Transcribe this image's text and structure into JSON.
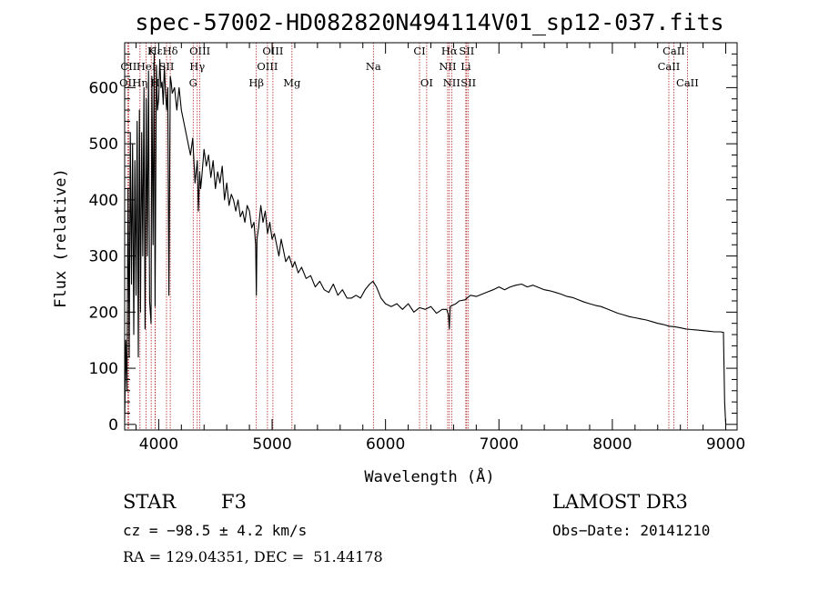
{
  "chart_data": {
    "type": "line",
    "title": "spec-57002-HD082820N494114V01_sp12-037.fits",
    "xlabel": "Wavelength (Å)",
    "ylabel": "Flux (relative)",
    "xlim": [
      3700,
      9100
    ],
    "ylim": [
      -10,
      680
    ],
    "x_ticks": [
      4000,
      5000,
      6000,
      7000,
      8000,
      9000
    ],
    "y_ticks": [
      0,
      100,
      200,
      300,
      400,
      500,
      600
    ],
    "x_minor_step": 200,
    "y_minor_step": 20,
    "series": [
      {
        "name": "flux",
        "x": [
          3700,
          3710,
          3720,
          3730,
          3740,
          3750,
          3760,
          3770,
          3780,
          3790,
          3800,
          3810,
          3820,
          3830,
          3840,
          3850,
          3860,
          3870,
          3880,
          3890,
          3900,
          3910,
          3920,
          3933,
          3940,
          3950,
          3960,
          3968,
          3980,
          3990,
          4000,
          4010,
          4020,
          4030,
          4040,
          4050,
          4060,
          4070,
          4080,
          4090,
          4102,
          4110,
          4120,
          4140,
          4160,
          4180,
          4200,
          4220,
          4240,
          4260,
          4280,
          4300,
          4320,
          4340,
          4350,
          4361,
          4370,
          4380,
          4400,
          4420,
          4440,
          4460,
          4480,
          4500,
          4520,
          4540,
          4560,
          4580,
          4600,
          4620,
          4640,
          4660,
          4680,
          4700,
          4720,
          4740,
          4760,
          4780,
          4800,
          4820,
          4840,
          4855,
          4861,
          4867,
          4880,
          4900,
          4920,
          4940,
          4960,
          4980,
          5000,
          5020,
          5040,
          5060,
          5080,
          5100,
          5120,
          5150,
          5180,
          5200,
          5230,
          5260,
          5300,
          5340,
          5380,
          5420,
          5460,
          5500,
          5540,
          5580,
          5620,
          5660,
          5700,
          5740,
          5780,
          5820,
          5860,
          5890,
          5920,
          5960,
          6000,
          6050,
          6100,
          6150,
          6200,
          6250,
          6300,
          6350,
          6400,
          6450,
          6500,
          6540,
          6555,
          6563,
          6570,
          6590,
          6620,
          6650,
          6700,
          6750,
          6800,
          6850,
          6900,
          6950,
          7000,
          7050,
          7100,
          7150,
          7200,
          7250,
          7300,
          7350,
          7400,
          7450,
          7500,
          7550,
          7600,
          7650,
          7700,
          7750,
          7800,
          7850,
          7900,
          7950,
          8000,
          8050,
          8100,
          8150,
          8200,
          8250,
          8300,
          8350,
          8400,
          8450,
          8500,
          8550,
          8600,
          8650,
          8700,
          8750,
          8800,
          8850,
          8900,
          8950,
          8980,
          8990,
          9000
        ],
        "y": [
          5,
          150,
          60,
          420,
          120,
          520,
          250,
          500,
          160,
          470,
          230,
          540,
          120,
          560,
          200,
          520,
          300,
          600,
          170,
          580,
          300,
          630,
          220,
          180,
          620,
          320,
          660,
          210,
          640,
          560,
          580,
          650,
          600,
          610,
          570,
          640,
          590,
          560,
          600,
          230,
          620,
          610,
          590,
          600,
          560,
          600,
          560,
          540,
          520,
          500,
          480,
          510,
          430,
          470,
          380,
          450,
          420,
          440,
          490,
          460,
          480,
          440,
          470,
          420,
          450,
          430,
          460,
          400,
          430,
          390,
          410,
          400,
          380,
          400,
          370,
          380,
          360,
          390,
          380,
          350,
          360,
          320,
          230,
          330,
          350,
          390,
          360,
          380,
          340,
          360,
          330,
          340,
          320,
          300,
          330,
          310,
          290,
          300,
          280,
          290,
          270,
          280,
          260,
          265,
          245,
          255,
          240,
          235,
          250,
          230,
          240,
          225,
          225,
          230,
          225,
          240,
          250,
          255,
          245,
          225,
          215,
          210,
          215,
          205,
          215,
          200,
          208,
          205,
          210,
          198,
          205,
          205,
          195,
          170,
          210,
          212,
          215,
          220,
          222,
          230,
          228,
          232,
          236,
          240,
          245,
          240,
          245,
          248,
          250,
          245,
          248,
          244,
          240,
          238,
          235,
          232,
          228,
          226,
          222,
          218,
          215,
          212,
          210,
          206,
          202,
          198,
          195,
          192,
          190,
          188,
          186,
          183,
          180,
          178,
          175,
          174,
          172,
          170,
          169,
          168,
          167,
          166,
          165,
          165,
          164,
          40,
          0
        ]
      }
    ],
    "spectral_lines": [
      {
        "label": "Hε",
        "wavelength": 3970,
        "row": 1
      },
      {
        "label": "CII",
        "wavelength": 3735,
        "row": 2
      },
      {
        "label": "OII",
        "wavelength": 3727,
        "row": 3
      },
      {
        "label": "Hη",
        "wavelength": 3835,
        "row": 3
      },
      {
        "label": "K",
        "wavelength": 3934,
        "row": 1
      },
      {
        "label": "HeI",
        "wavelength": 3889,
        "row": 2
      },
      {
        "label": "H",
        "wavelength": 3968,
        "row": 3
      },
      {
        "label": "SII",
        "wavelength": 4069,
        "row": 2
      },
      {
        "label": "Hδ",
        "wavelength": 4102,
        "row": 1
      },
      {
        "label": "OIII",
        "wavelength": 4363,
        "row": 1
      },
      {
        "label": "Hγ",
        "wavelength": 4340,
        "row": 2
      },
      {
        "label": "G",
        "wavelength": 4304,
        "row": 3
      },
      {
        "label": "Hβ",
        "wavelength": 4861,
        "row": 3
      },
      {
        "label": "OIII",
        "wavelength": 5007,
        "row": 1
      },
      {
        "label": "OIII",
        "wavelength": 4959,
        "row": 2
      },
      {
        "label": "Mg",
        "wavelength": 5175,
        "row": 3
      },
      {
        "label": "Na",
        "wavelength": 5893,
        "row": 2
      },
      {
        "label": "CI",
        "wavelength": 6300,
        "row": 1
      },
      {
        "label": "OI",
        "wavelength": 6363,
        "row": 3
      },
      {
        "label": "Hα",
        "wavelength": 6563,
        "row": 1
      },
      {
        "label": "NII",
        "wavelength": 6548,
        "row": 2
      },
      {
        "label": "NII",
        "wavelength": 6583,
        "row": 3
      },
      {
        "label": "SII",
        "wavelength": 6716,
        "row": 1
      },
      {
        "label": "Li",
        "wavelength": 6708,
        "row": 2
      },
      {
        "label": "SII",
        "wavelength": 6731,
        "row": 3
      },
      {
        "label": "CaII",
        "wavelength": 8542,
        "row": 1
      },
      {
        "label": "CaII",
        "wavelength": 8498,
        "row": 2
      },
      {
        "label": "CaII",
        "wavelength": 8662,
        "row": 3
      }
    ],
    "colors": {
      "line": "#000000",
      "marker": "#b22222",
      "axes": "#000000"
    }
  },
  "info": {
    "object_class": "STAR",
    "subclass": "F3",
    "survey": "LAMOST DR3",
    "velocity": "cz = −98.5 ± 4.2 km/s",
    "obs_date": "Obs−Date: 20141210",
    "coords": "RA = 129.04351, DEC =  51.44178"
  }
}
